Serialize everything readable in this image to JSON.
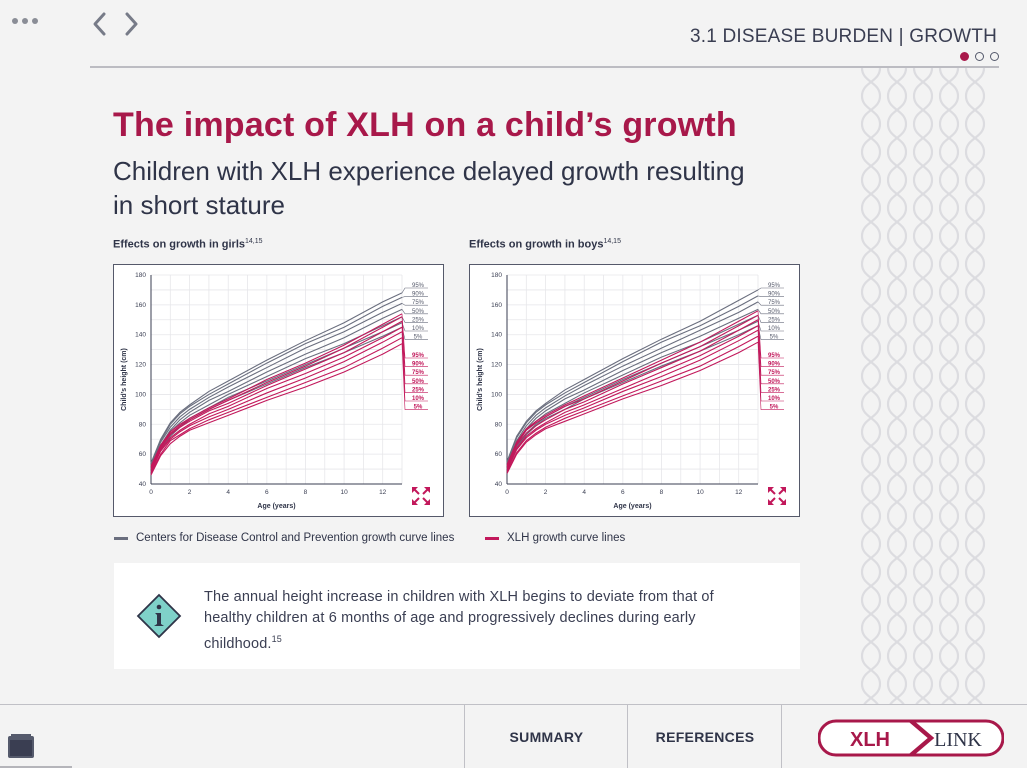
{
  "header": {
    "section_title": "3.1 DISEASE BURDEN | GROWTH",
    "icons": {
      "menu": "more-dots-icon",
      "back": "chevron-left-icon",
      "forward": "chevron-right-icon"
    }
  },
  "main": {
    "title": "The impact of XLH on a child’s growth",
    "subtitle": "Children with XLH experience delayed growth resulting in short stature"
  },
  "charts": {
    "girls_label": "Effects on growth in girls",
    "girls_ref": "14,15",
    "boys_label": "Effects on growth in boys",
    "boys_ref": "14,15",
    "xlabel": "Age (years)",
    "ylabel": "Child’s height (cm)"
  },
  "legend": {
    "cdc": "Centers for Disease Control and Prevention growth curve lines",
    "xlh": "XLH growth curve lines"
  },
  "info": {
    "text": "The annual height increase in children with XLH begins to deviate from that of healthy children at 6 months of age and progressively declines during early childhood.",
    "ref": "15"
  },
  "footer": {
    "summary": "SUMMARY",
    "references": "REFERENCES",
    "logo_left": "XLH",
    "logo_right": "LINK"
  },
  "colors": {
    "accent": "#a8184a",
    "cdc_line": "#6a6e7e",
    "xlh_line": "#c2185b",
    "text": "#2f3448"
  },
  "chart_data": [
    {
      "type": "line",
      "title": "Effects on growth in girls",
      "xlabel": "Age (years)",
      "ylabel": "Child’s height (cm)",
      "xlim": [
        0,
        13
      ],
      "ylim": [
        40,
        180
      ],
      "x_ticks": [
        0,
        2,
        4,
        6,
        8,
        10,
        12
      ],
      "y_ticks": [
        40,
        60,
        80,
        100,
        120,
        140,
        160,
        180
      ],
      "grid": true,
      "x": [
        0,
        0.5,
        1,
        1.5,
        2,
        3,
        4,
        6,
        8,
        10,
        12,
        13
      ],
      "series": [
        {
          "group": "CDC",
          "name": "95%",
          "values": [
            54,
            70,
            81,
            88,
            93,
            102,
            109,
            123,
            136,
            148,
            162,
            168
          ]
        },
        {
          "group": "CDC",
          "name": "90%",
          "values": [
            53,
            69,
            80,
            87,
            92,
            100,
            107,
            121,
            134,
            145,
            159,
            165
          ]
        },
        {
          "group": "CDC",
          "name": "75%",
          "values": [
            52,
            68,
            78,
            85,
            90,
            98,
            105,
            118,
            131,
            142,
            155,
            161
          ]
        },
        {
          "group": "CDC",
          "name": "50%",
          "values": [
            51,
            66,
            76,
            83,
            88,
            96,
            102,
            115,
            127,
            138,
            151,
            157
          ]
        },
        {
          "group": "CDC",
          "name": "25%",
          "values": [
            50,
            65,
            75,
            81,
            86,
            93,
            100,
            112,
            124,
            134,
            146,
            152
          ]
        },
        {
          "group": "CDC",
          "name": "10%",
          "values": [
            49,
            64,
            73,
            79,
            84,
            91,
            98,
            109,
            120,
            131,
            142,
            148
          ]
        },
        {
          "group": "CDC",
          "name": "5%",
          "values": [
            48,
            63,
            72,
            78,
            83,
            90,
            96,
            107,
            118,
            128,
            139,
            145
          ]
        },
        {
          "group": "XLH",
          "name": "95%",
          "values": [
            52,
            66,
            75,
            80,
            84,
            91,
            97,
            110,
            121,
            133,
            147,
            154
          ]
        },
        {
          "group": "XLH",
          "name": "90%",
          "values": [
            51,
            65,
            74,
            79,
            83,
            90,
            96,
            108,
            119,
            131,
            145,
            152
          ]
        },
        {
          "group": "XLH",
          "name": "75%",
          "values": [
            50,
            64,
            73,
            78,
            82,
            89,
            94,
            106,
            117,
            128,
            142,
            149
          ]
        },
        {
          "group": "XLH",
          "name": "50%",
          "values": [
            49,
            63,
            71,
            76,
            80,
            87,
            92,
            104,
            114,
            125,
            138,
            145
          ]
        },
        {
          "group": "XLH",
          "name": "25%",
          "values": [
            48,
            62,
            70,
            75,
            79,
            85,
            90,
            101,
            111,
            122,
            135,
            142
          ]
        },
        {
          "group": "XLH",
          "name": "10%",
          "values": [
            47,
            60,
            69,
            73,
            77,
            83,
            88,
            98,
            108,
            118,
            131,
            138
          ]
        },
        {
          "group": "XLH",
          "name": "5%",
          "values": [
            46,
            59,
            67,
            72,
            76,
            81,
            86,
            96,
            105,
            115,
            127,
            134
          ]
        }
      ],
      "cdc_labels": [
        "95%",
        "90%",
        "75%",
        "50%",
        "25%",
        "10%",
        "5%"
      ],
      "xlh_labels": [
        "95%",
        "90%",
        "75%",
        "50%",
        "25%",
        "10%",
        "5%"
      ]
    },
    {
      "type": "line",
      "title": "Effects on growth in boys",
      "xlabel": "Age (years)",
      "ylabel": "Child’s height (cm)",
      "xlim": [
        0,
        13
      ],
      "ylim": [
        40,
        180
      ],
      "x_ticks": [
        0,
        2,
        4,
        6,
        8,
        10,
        12
      ],
      "y_ticks": [
        40,
        60,
        80,
        100,
        120,
        140,
        160,
        180
      ],
      "grid": true,
      "x": [
        0,
        0.5,
        1,
        1.5,
        2,
        3,
        4,
        6,
        8,
        10,
        12,
        13
      ],
      "series": [
        {
          "group": "CDC",
          "name": "95%",
          "values": [
            55,
            72,
            82,
            89,
            94,
            103,
            110,
            124,
            137,
            149,
            163,
            170
          ]
        },
        {
          "group": "CDC",
          "name": "90%",
          "values": [
            54,
            71,
            81,
            88,
            93,
            101,
            108,
            122,
            135,
            146,
            159,
            166
          ]
        },
        {
          "group": "CDC",
          "name": "75%",
          "values": [
            53,
            69,
            79,
            86,
            91,
            99,
            106,
            119,
            131,
            143,
            155,
            162
          ]
        },
        {
          "group": "CDC",
          "name": "50%",
          "values": [
            52,
            68,
            77,
            84,
            89,
            97,
            103,
            116,
            128,
            139,
            151,
            157
          ]
        },
        {
          "group": "CDC",
          "name": "25%",
          "values": [
            51,
            66,
            76,
            82,
            87,
            94,
            101,
            113,
            125,
            135,
            147,
            153
          ]
        },
        {
          "group": "CDC",
          "name": "10%",
          "values": [
            50,
            65,
            74,
            80,
            85,
            92,
            98,
            110,
            121,
            132,
            143,
            149
          ]
        },
        {
          "group": "CDC",
          "name": "5%",
          "values": [
            49,
            64,
            73,
            79,
            84,
            90,
            97,
            108,
            119,
            129,
            140,
            146
          ]
        },
        {
          "group": "XLH",
          "name": "95%",
          "values": [
            53,
            68,
            77,
            82,
            86,
            93,
            99,
            111,
            123,
            135,
            149,
            156
          ]
        },
        {
          "group": "XLH",
          "name": "90%",
          "values": [
            52,
            67,
            76,
            81,
            85,
            92,
            97,
            109,
            121,
            132,
            146,
            153
          ]
        },
        {
          "group": "XLH",
          "name": "75%",
          "values": [
            51,
            66,
            74,
            79,
            83,
            90,
            95,
            107,
            118,
            129,
            143,
            150
          ]
        },
        {
          "group": "XLH",
          "name": "50%",
          "values": [
            50,
            64,
            72,
            77,
            81,
            88,
            93,
            104,
            115,
            126,
            139,
            146
          ]
        },
        {
          "group": "XLH",
          "name": "25%",
          "values": [
            49,
            63,
            71,
            76,
            80,
            86,
            91,
            102,
            112,
            123,
            136,
            143
          ]
        },
        {
          "group": "XLH",
          "name": "10%",
          "values": [
            48,
            61,
            69,
            74,
            78,
            84,
            89,
            99,
            109,
            119,
            132,
            139
          ]
        },
        {
          "group": "XLH",
          "name": "5%",
          "values": [
            47,
            60,
            68,
            73,
            77,
            82,
            87,
            97,
            106,
            116,
            128,
            135
          ]
        }
      ],
      "cdc_labels": [
        "95%",
        "90%",
        "75%",
        "50%",
        "25%",
        "10%",
        "5%"
      ],
      "xlh_labels": [
        "95%",
        "90%",
        "75%",
        "50%",
        "25%",
        "10%",
        "5%"
      ]
    }
  ]
}
